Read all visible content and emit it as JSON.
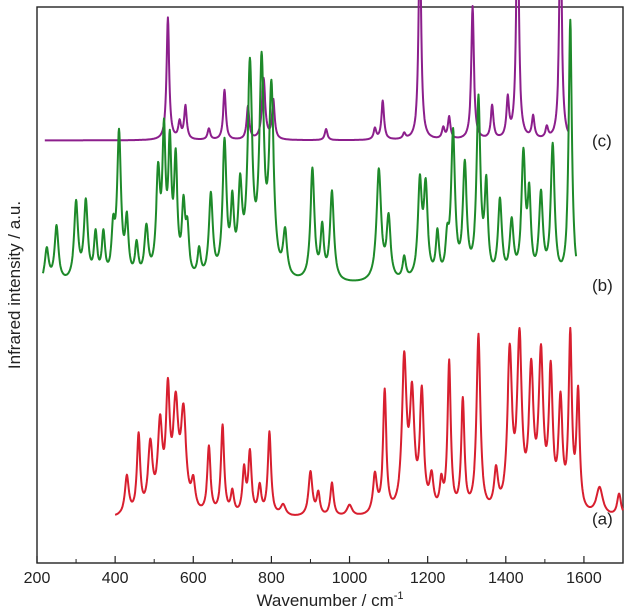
{
  "chart_data": {
    "type": "line",
    "xlabel": "Wavenumber / cm",
    "xlabel_sup": "-1",
    "ylabel": "Infrared intensity / a.u.",
    "xlim": [
      200,
      1700
    ],
    "x_ticks": [
      200,
      400,
      600,
      800,
      1000,
      1200,
      1400,
      1600
    ],
    "y_ticks_shown": false,
    "grid": false,
    "legend": "none",
    "series": [
      {
        "name": "(c)",
        "color": "#8c1f8c",
        "baseline": 0.76,
        "x_range": [
          220,
          1560
        ],
        "peaks": [
          {
            "x": 535,
            "h": 0.22,
            "w": 4
          },
          {
            "x": 565,
            "h": 0.03,
            "w": 4
          },
          {
            "x": 580,
            "h": 0.06,
            "w": 4
          },
          {
            "x": 640,
            "h": 0.02,
            "w": 4
          },
          {
            "x": 680,
            "h": 0.09,
            "w": 4
          },
          {
            "x": 740,
            "h": 0.06,
            "w": 4
          },
          {
            "x": 780,
            "h": 0.11,
            "w": 5
          },
          {
            "x": 805,
            "h": 0.07,
            "w": 4
          },
          {
            "x": 940,
            "h": 0.02,
            "w": 4
          },
          {
            "x": 1065,
            "h": 0.02,
            "w": 4
          },
          {
            "x": 1085,
            "h": 0.07,
            "w": 4
          },
          {
            "x": 1140,
            "h": 0.01,
            "w": 4
          },
          {
            "x": 1180,
            "h": 0.38,
            "w": 4
          },
          {
            "x": 1240,
            "h": 0.02,
            "w": 4
          },
          {
            "x": 1255,
            "h": 0.04,
            "w": 4
          },
          {
            "x": 1315,
            "h": 0.24,
            "w": 4
          },
          {
            "x": 1365,
            "h": 0.06,
            "w": 4
          },
          {
            "x": 1405,
            "h": 0.07,
            "w": 4
          },
          {
            "x": 1430,
            "h": 0.44,
            "w": 4
          },
          {
            "x": 1470,
            "h": 0.04,
            "w": 4
          },
          {
            "x": 1505,
            "h": 0.02,
            "w": 4
          },
          {
            "x": 1540,
            "h": 0.4,
            "w": 4
          }
        ]
      },
      {
        "name": "(b)",
        "color": "#1e8a2a",
        "baseline": 0.5,
        "x_range": [
          215,
          1580
        ],
        "peaks": [
          {
            "x": 225,
            "h": 0.06,
            "w": 6
          },
          {
            "x": 250,
            "h": 0.1,
            "w": 6
          },
          {
            "x": 300,
            "h": 0.14,
            "w": 6
          },
          {
            "x": 325,
            "h": 0.14,
            "w": 6
          },
          {
            "x": 350,
            "h": 0.08,
            "w": 5
          },
          {
            "x": 370,
            "h": 0.08,
            "w": 5
          },
          {
            "x": 395,
            "h": 0.08,
            "w": 5
          },
          {
            "x": 410,
            "h": 0.26,
            "w": 6
          },
          {
            "x": 430,
            "h": 0.1,
            "w": 5
          },
          {
            "x": 455,
            "h": 0.06,
            "w": 5
          },
          {
            "x": 480,
            "h": 0.09,
            "w": 6
          },
          {
            "x": 510,
            "h": 0.18,
            "w": 6
          },
          {
            "x": 525,
            "h": 0.24,
            "w": 5
          },
          {
            "x": 540,
            "h": 0.22,
            "w": 5
          },
          {
            "x": 555,
            "h": 0.2,
            "w": 5
          },
          {
            "x": 575,
            "h": 0.12,
            "w": 5
          },
          {
            "x": 585,
            "h": 0.08,
            "w": 5
          },
          {
            "x": 615,
            "h": 0.05,
            "w": 5
          },
          {
            "x": 645,
            "h": 0.15,
            "w": 6
          },
          {
            "x": 680,
            "h": 0.24,
            "w": 6
          },
          {
            "x": 700,
            "h": 0.12,
            "w": 5
          },
          {
            "x": 720,
            "h": 0.15,
            "w": 6
          },
          {
            "x": 745,
            "h": 0.37,
            "w": 7
          },
          {
            "x": 775,
            "h": 0.37,
            "w": 7
          },
          {
            "x": 800,
            "h": 0.33,
            "w": 7
          },
          {
            "x": 835,
            "h": 0.08,
            "w": 6
          },
          {
            "x": 905,
            "h": 0.2,
            "w": 6
          },
          {
            "x": 930,
            "h": 0.09,
            "w": 5
          },
          {
            "x": 955,
            "h": 0.16,
            "w": 6
          },
          {
            "x": 1075,
            "h": 0.2,
            "w": 7
          },
          {
            "x": 1100,
            "h": 0.11,
            "w": 6
          },
          {
            "x": 1140,
            "h": 0.04,
            "w": 5
          },
          {
            "x": 1180,
            "h": 0.17,
            "w": 6
          },
          {
            "x": 1195,
            "h": 0.16,
            "w": 6
          },
          {
            "x": 1225,
            "h": 0.08,
            "w": 5
          },
          {
            "x": 1250,
            "h": 0.06,
            "w": 5
          },
          {
            "x": 1265,
            "h": 0.26,
            "w": 6
          },
          {
            "x": 1295,
            "h": 0.2,
            "w": 6
          },
          {
            "x": 1330,
            "h": 0.32,
            "w": 6
          },
          {
            "x": 1350,
            "h": 0.16,
            "w": 5
          },
          {
            "x": 1385,
            "h": 0.14,
            "w": 6
          },
          {
            "x": 1415,
            "h": 0.1,
            "w": 6
          },
          {
            "x": 1445,
            "h": 0.22,
            "w": 6
          },
          {
            "x": 1460,
            "h": 0.14,
            "w": 5
          },
          {
            "x": 1490,
            "h": 0.15,
            "w": 6
          },
          {
            "x": 1520,
            "h": 0.24,
            "w": 6
          },
          {
            "x": 1565,
            "h": 0.47,
            "w": 5
          }
        ]
      },
      {
        "name": "(a)",
        "color": "#d81f2f",
        "baseline": 0.08,
        "x_range": [
          400,
          1700
        ],
        "peaks": [
          {
            "x": 430,
            "h": 0.07,
            "w": 6
          },
          {
            "x": 460,
            "h": 0.14,
            "w": 5
          },
          {
            "x": 490,
            "h": 0.12,
            "w": 7
          },
          {
            "x": 515,
            "h": 0.15,
            "w": 7
          },
          {
            "x": 535,
            "h": 0.2,
            "w": 6
          },
          {
            "x": 555,
            "h": 0.18,
            "w": 8
          },
          {
            "x": 575,
            "h": 0.17,
            "w": 8
          },
          {
            "x": 600,
            "h": 0.05,
            "w": 6
          },
          {
            "x": 640,
            "h": 0.12,
            "w": 5
          },
          {
            "x": 675,
            "h": 0.16,
            "w": 5
          },
          {
            "x": 700,
            "h": 0.04,
            "w": 5
          },
          {
            "x": 730,
            "h": 0.08,
            "w": 5
          },
          {
            "x": 745,
            "h": 0.11,
            "w": 5
          },
          {
            "x": 770,
            "h": 0.05,
            "w": 5
          },
          {
            "x": 795,
            "h": 0.15,
            "w": 5
          },
          {
            "x": 830,
            "h": 0.02,
            "w": 8
          },
          {
            "x": 900,
            "h": 0.08,
            "w": 6
          },
          {
            "x": 920,
            "h": 0.04,
            "w": 5
          },
          {
            "x": 955,
            "h": 0.06,
            "w": 5
          },
          {
            "x": 1000,
            "h": 0.02,
            "w": 8
          },
          {
            "x": 1065,
            "h": 0.07,
            "w": 6
          },
          {
            "x": 1090,
            "h": 0.22,
            "w": 5
          },
          {
            "x": 1140,
            "h": 0.27,
            "w": 7
          },
          {
            "x": 1160,
            "h": 0.2,
            "w": 7
          },
          {
            "x": 1185,
            "h": 0.21,
            "w": 6
          },
          {
            "x": 1210,
            "h": 0.06,
            "w": 6
          },
          {
            "x": 1235,
            "h": 0.05,
            "w": 5
          },
          {
            "x": 1255,
            "h": 0.27,
            "w": 5
          },
          {
            "x": 1290,
            "h": 0.2,
            "w": 5
          },
          {
            "x": 1330,
            "h": 0.32,
            "w": 6
          },
          {
            "x": 1375,
            "h": 0.07,
            "w": 6
          },
          {
            "x": 1410,
            "h": 0.28,
            "w": 7
          },
          {
            "x": 1435,
            "h": 0.3,
            "w": 7
          },
          {
            "x": 1465,
            "h": 0.24,
            "w": 7
          },
          {
            "x": 1490,
            "h": 0.27,
            "w": 7
          },
          {
            "x": 1515,
            "h": 0.24,
            "w": 6
          },
          {
            "x": 1540,
            "h": 0.19,
            "w": 6
          },
          {
            "x": 1565,
            "h": 0.31,
            "w": 5
          },
          {
            "x": 1585,
            "h": 0.21,
            "w": 5
          },
          {
            "x": 1640,
            "h": 0.05,
            "w": 10
          },
          {
            "x": 1690,
            "h": 0.04,
            "w": 6
          }
        ]
      }
    ]
  }
}
